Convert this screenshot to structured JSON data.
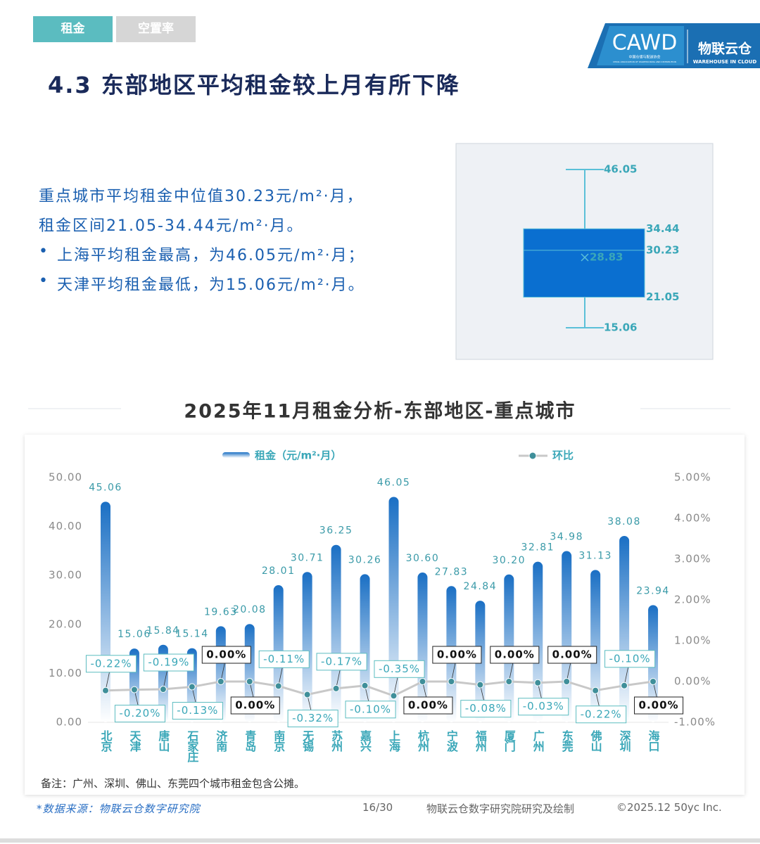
{
  "tabs": [
    "租金",
    "空置率"
  ],
  "logo": {
    "cawd": "CAWD",
    "cawd_cn": "中国仓储与配送协会",
    "cawd_en": "CHINA ASSOCIATION OF WAREHOUSING AND DISTRIBUTION",
    "brand": "物联云仓",
    "brand_en": "WAREHOUSE IN CLOUD"
  },
  "title": "4.3 东部地区平均租金较上月有所下降",
  "summary": {
    "lines": [
      "重点城市平均租金中位值30.23元/m²·月，",
      "租金区间21.05-34.44元/m²·月。"
    ],
    "bullets": [
      "上海平均租金最高，为46.05元/m²·月；",
      "天津平均租金最低，为15.06元/m²·月。"
    ]
  },
  "chart_data": [
    {
      "type": "box",
      "min": 15.06,
      "q1": 21.05,
      "median": 30.23,
      "q3": 34.44,
      "max": 46.05,
      "mean": 28.83,
      "color": "#0a6fd0",
      "whisker_color": "#5bc0d8"
    },
    {
      "type": "bar-line",
      "title": "2025年11月租金分析-东部地区-重点城市",
      "categories": [
        "北京",
        "天津",
        "唐山",
        "石家庄",
        "济南",
        "青岛",
        "南京",
        "无锡",
        "苏州",
        "嘉兴",
        "上海",
        "杭州",
        "宁波",
        "福州",
        "厦门",
        "广州",
        "东莞",
        "佛山",
        "深圳",
        "海口"
      ],
      "series": [
        {
          "name": "租金（元/m²·月）",
          "type": "bar",
          "color": "#1a6fc4",
          "values": [
            45.06,
            15.06,
            15.84,
            15.14,
            19.63,
            20.08,
            28.01,
            30.71,
            36.25,
            30.26,
            46.05,
            30.6,
            27.83,
            24.84,
            30.2,
            32.81,
            34.98,
            31.13,
            38.08,
            23.94
          ],
          "value_labels": [
            "45.06",
            "15.06",
            "15.84",
            "15.14",
            "19.63",
            "20.08",
            "28.01",
            "30.71",
            "36.25",
            "30.26",
            "46.05",
            "30.60",
            "27.83",
            "24.84",
            "30.20",
            "32.81",
            "34.98",
            "31.13",
            "38.08",
            "23.94"
          ]
        },
        {
          "name": "环比",
          "type": "line",
          "axis": "y2",
          "color": "#c8c8c8",
          "marker_color": "#3f8f9a",
          "values": [
            -0.22,
            -0.2,
            -0.19,
            -0.13,
            0,
            0,
            -0.11,
            -0.32,
            -0.17,
            -0.1,
            -0.35,
            0,
            0,
            -0.08,
            0,
            -0.03,
            0,
            -0.22,
            -0.1,
            0
          ],
          "value_labels": [
            "-0.22%",
            "-0.20%",
            "-0.19%",
            "-0.13%",
            "0.00%",
            "0.00%",
            "-0.11%",
            "-0.32%",
            "-0.17%",
            "-0.10%",
            "-0.35%",
            "0.00%",
            "0.00%",
            "-0.08%",
            "0.00%",
            "-0.03%",
            "0.00%",
            "-0.22%",
            "-0.10%",
            "0.00%"
          ]
        }
      ],
      "ylim": [
        0,
        50
      ],
      "yticks": [
        {
          "value": 0,
          "label": "0.00"
        },
        {
          "value": 10,
          "label": "10.00"
        },
        {
          "value": 20,
          "label": "20.00"
        },
        {
          "value": 30,
          "label": "30.00"
        },
        {
          "value": 40,
          "label": "40.00"
        },
        {
          "value": 50,
          "label": "50.00"
        }
      ],
      "y2lim": [
        -1,
        5
      ],
      "y2ticks": [
        {
          "value": -1,
          "label": "-1.00%"
        },
        {
          "value": 0,
          "label": "0.00%"
        },
        {
          "value": 1,
          "label": "1.00%"
        },
        {
          "value": 2,
          "label": "2.00%"
        },
        {
          "value": 3,
          "label": "3.00%"
        },
        {
          "value": 4,
          "label": "4.00%"
        },
        {
          "value": 5,
          "label": "5.00%"
        }
      ],
      "legend": "top"
    }
  ],
  "note": "备注：广州、深圳、佛山、东莞四个城市租金包含公摊。",
  "footer": {
    "source": "*数据来源：物联云仓数字研究院",
    "page": "16/30",
    "credit": "物联云仓数字研究院研究及绘制",
    "copyright": "©2025.12 50yc Inc."
  }
}
